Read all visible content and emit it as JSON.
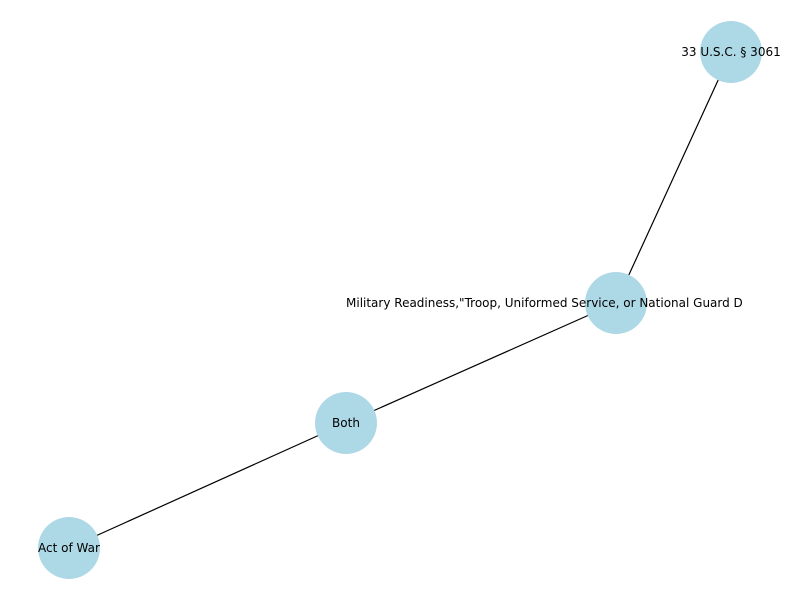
{
  "diagram": {
    "node_color": "#add8e6",
    "edge_color": "#000000",
    "nodes": [
      {
        "id": "act-of-war",
        "label": "Act of War"
      },
      {
        "id": "both",
        "label": "Both"
      },
      {
        "id": "military-readiness",
        "label": "Military Readiness,\"Troop, Uniformed Service, or National Guard D"
      },
      {
        "id": "usc",
        "label": "33 U.S.C. § 3061"
      }
    ],
    "edges": [
      {
        "from": "act-of-war",
        "to": "both"
      },
      {
        "from": "both",
        "to": "military-readiness"
      },
      {
        "from": "military-readiness",
        "to": "usc"
      }
    ]
  }
}
